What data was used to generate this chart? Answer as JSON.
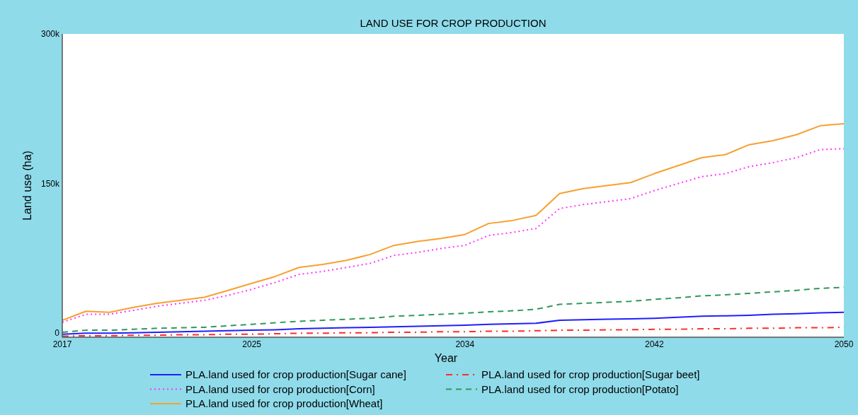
{
  "chart_data": {
    "type": "line",
    "title": "LAND USE FOR CROP PRODUCTION",
    "xlabel": "Year",
    "ylabel": "Land use (ha)",
    "x": [
      2017,
      2018,
      2019,
      2020,
      2021,
      2022,
      2023,
      2024,
      2025,
      2026,
      2027,
      2028,
      2029,
      2030,
      2031,
      2032,
      2033,
      2034,
      2035,
      2036,
      2037,
      2038,
      2039,
      2040,
      2041,
      2042,
      2043,
      2044,
      2045,
      2046,
      2047,
      2048,
      2049,
      2050
    ],
    "series": [
      {
        "name": "PLA.land used for crop production[Sugar cane]",
        "color": "#1f1fff",
        "line_style": "solid",
        "values": [
          -1000,
          0,
          0,
          500,
          1000,
          1500,
          2000,
          2500,
          3000,
          3500,
          4500,
          5000,
          5500,
          6000,
          6500,
          7000,
          7500,
          8000,
          9000,
          9500,
          10000,
          13000,
          13500,
          14000,
          14500,
          15000,
          16000,
          17000,
          17500,
          18000,
          19000,
          19500,
          20500,
          21000
        ]
      },
      {
        "name": "PLA.land used for crop production[Sugar beet]",
        "color": "#ff2b2b",
        "line_style": "dashdot",
        "values": [
          -3000,
          -2500,
          -2500,
          -2000,
          -2000,
          -1500,
          -1500,
          -1000,
          -1000,
          -500,
          0,
          0,
          500,
          500,
          1000,
          1000,
          1500,
          1500,
          2000,
          2000,
          2500,
          3000,
          3000,
          3500,
          3500,
          4000,
          4000,
          4500,
          4500,
          5000,
          5000,
          5500,
          5500,
          6000
        ]
      },
      {
        "name": "PLA.land used for crop production[Corn]",
        "color": "#ff33ff",
        "line_style": "dotted",
        "values": [
          11000,
          19000,
          19000,
          23000,
          27000,
          30000,
          33000,
          38000,
          44000,
          51000,
          59000,
          62000,
          66000,
          70000,
          78000,
          81000,
          85000,
          88000,
          98000,
          101000,
          105000,
          125000,
          129000,
          132000,
          135000,
          143000,
          150000,
          157000,
          160000,
          167000,
          171000,
          176000,
          184000,
          185000
        ]
      },
      {
        "name": "PLA.land used for crop production[Potato]",
        "color": "#2e9a5a",
        "line_style": "dashed",
        "values": [
          1000,
          3000,
          3000,
          4000,
          5000,
          5500,
          6000,
          7500,
          9000,
          10500,
          12000,
          13000,
          14000,
          15000,
          17000,
          18000,
          19000,
          20000,
          21500,
          22500,
          24000,
          29000,
          30000,
          31000,
          32000,
          34000,
          35500,
          37500,
          38500,
          40000,
          41500,
          43000,
          45000,
          46000
        ]
      },
      {
        "name": "PLA.land used for crop production[Wheat]",
        "color": "#f7a030",
        "line_style": "solid",
        "values": [
          13000,
          22000,
          21000,
          26000,
          30000,
          33000,
          36000,
          43000,
          50000,
          57000,
          66000,
          69000,
          73000,
          79000,
          88000,
          92000,
          95000,
          99000,
          110000,
          113000,
          118000,
          140000,
          145000,
          148000,
          151000,
          160000,
          168000,
          176000,
          179000,
          189000,
          193000,
          199000,
          208000,
          210000
        ]
      }
    ],
    "xlim": [
      2017,
      2050
    ],
    "xticks": [
      2017,
      2025,
      2034,
      2042,
      2050
    ],
    "ylim": [
      -4000,
      300000
    ],
    "yticks": [
      {
        "value": 0,
        "label": "0"
      },
      {
        "value": 150000,
        "label": "150k"
      },
      {
        "value": 300000,
        "label": "300k"
      }
    ],
    "grid": false,
    "legend": "bottom",
    "marker": "none"
  }
}
